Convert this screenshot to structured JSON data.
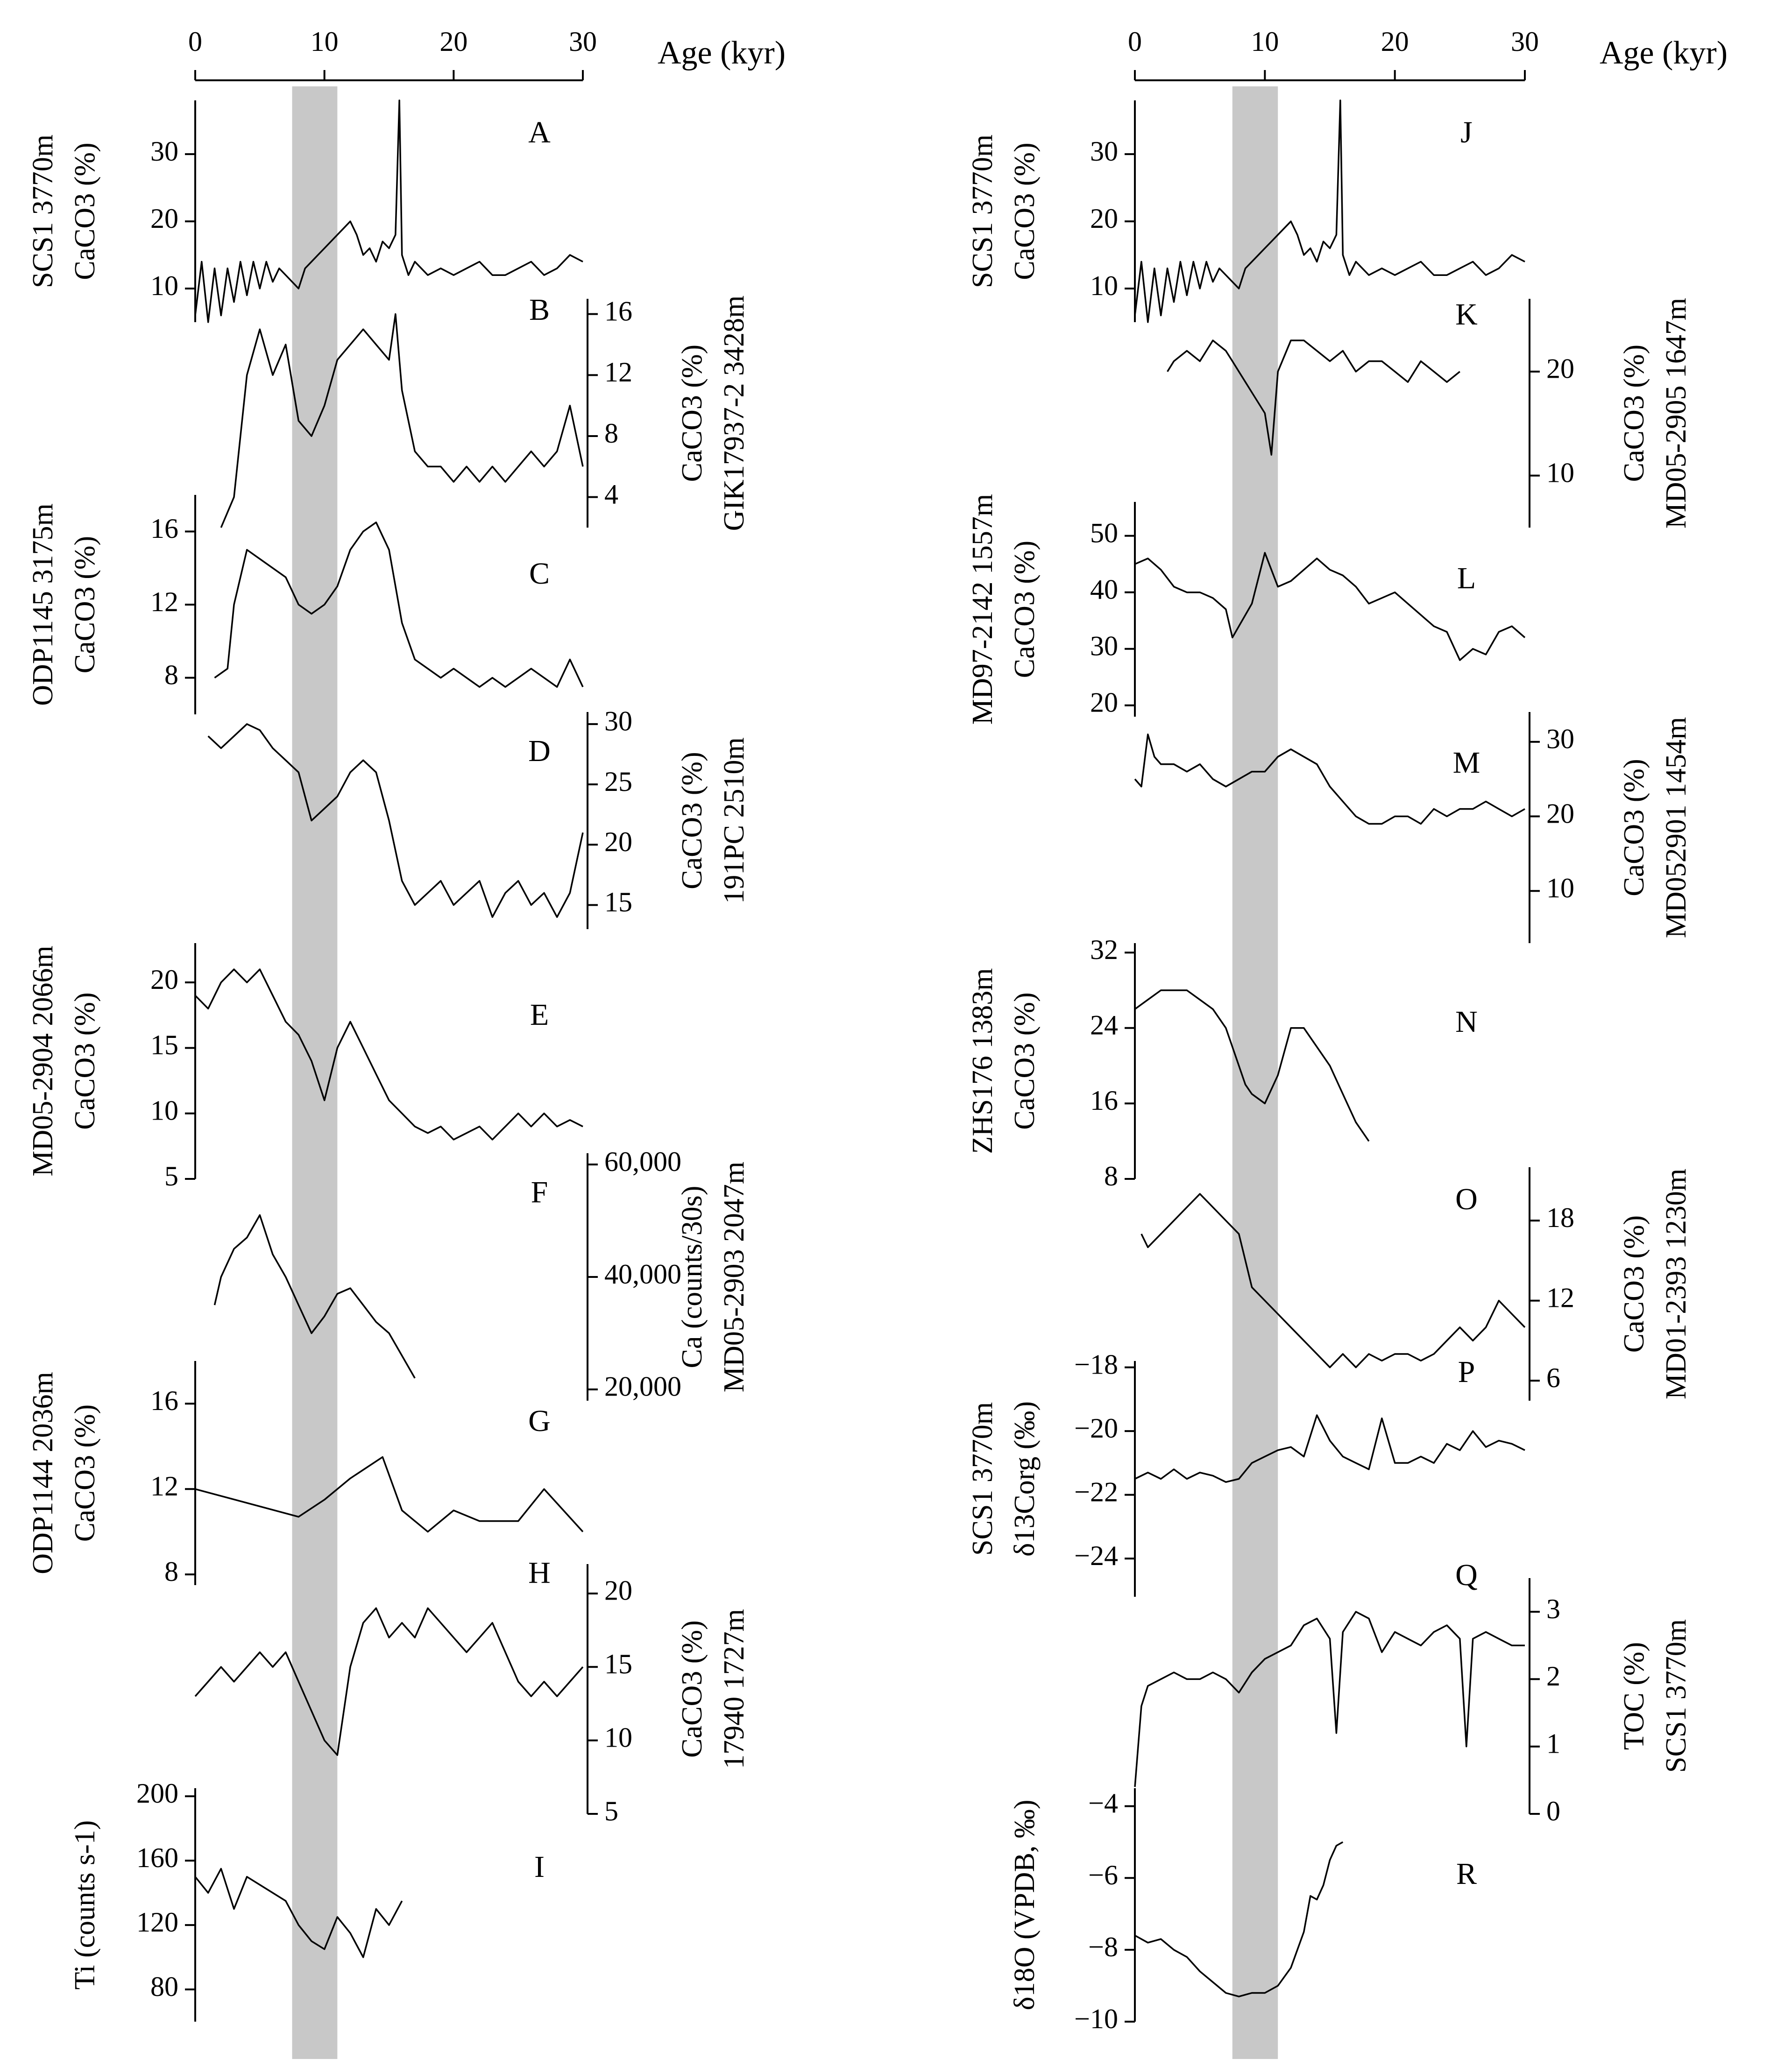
{
  "age_axis": {
    "label": "Age (kyr)",
    "ticks": [
      0,
      10,
      20,
      30
    ],
    "range": [
      0,
      30
    ]
  },
  "highlight_band_kyr": [
    7.5,
    11.0
  ],
  "chart_data": [
    {
      "type": "line",
      "letter": "A",
      "column": "left",
      "site": "SCS1 3770m",
      "ylabel": "CaCO3 (%)",
      "ylabel_sub": "3",
      "yticks": [
        10,
        20,
        30
      ],
      "ylim": [
        5,
        38
      ],
      "axis_side": "left",
      "x": [
        0,
        0.5,
        1,
        1.5,
        2,
        2.5,
        3,
        3.5,
        4,
        4.5,
        5,
        5.5,
        6,
        6.5,
        7,
        7.5,
        8,
        8.5,
        9,
        9.5,
        10,
        10.5,
        11,
        11.5,
        12,
        12.5,
        13,
        13.5,
        14,
        14.5,
        15,
        15.5,
        15.8,
        16,
        16.5,
        17,
        18,
        19,
        20,
        21,
        22,
        23,
        24,
        25,
        26,
        27,
        28,
        29,
        30
      ],
      "y": [
        6,
        14,
        5,
        13,
        6,
        13,
        8,
        14,
        9,
        14,
        10,
        14,
        11,
        13,
        12,
        11,
        10,
        13,
        14,
        15,
        16,
        17,
        18,
        19,
        20,
        18,
        15,
        16,
        14,
        17,
        16,
        18,
        38,
        15,
        12,
        14,
        12,
        13,
        12,
        13,
        14,
        12,
        12,
        13,
        14,
        12,
        13,
        15,
        14
      ]
    },
    {
      "type": "line",
      "letter": "B",
      "column": "left",
      "site": "GIK17937-2 3428m",
      "ylabel": "CaCO3 (%)",
      "ylabel_sub": "3",
      "yticks": [
        4,
        8,
        12,
        16
      ],
      "ylim": [
        2,
        17
      ],
      "axis_side": "right",
      "x": [
        2,
        3,
        4,
        5,
        6,
        7,
        8,
        9,
        10,
        11,
        12,
        13,
        14,
        15,
        15.5,
        16,
        17,
        18,
        19,
        20,
        21,
        22,
        23,
        24,
        25,
        26,
        27,
        28,
        29,
        30
      ],
      "y": [
        2,
        4,
        12,
        15,
        12,
        14,
        9,
        8,
        10,
        13,
        14,
        15,
        14,
        13,
        16,
        11,
        7,
        6,
        6,
        5,
        6,
        5,
        6,
        5,
        6,
        7,
        6,
        7,
        10,
        6
      ]
    },
    {
      "type": "line",
      "letter": "C",
      "column": "left",
      "site": "ODP1145 3175m",
      "ylabel": "CaCO3 (%)",
      "ylabel_sub": "3",
      "yticks": [
        8,
        12,
        16
      ],
      "ylim": [
        6,
        18
      ],
      "axis_side": "left",
      "x": [
        1.5,
        2.5,
        3,
        4,
        5,
        6,
        7,
        8,
        9,
        10,
        11,
        12,
        13,
        14,
        15,
        16,
        17,
        18,
        19,
        20,
        21,
        22,
        23,
        24,
        25,
        26,
        27,
        28,
        29,
        30
      ],
      "y": [
        8,
        8.5,
        12,
        15,
        14.5,
        14,
        13.5,
        12,
        11.5,
        12,
        13,
        15,
        16,
        16.5,
        15,
        11,
        9,
        8.5,
        8,
        8.5,
        8,
        7.5,
        8,
        7.5,
        8,
        8.5,
        8,
        7.5,
        9,
        7.5
      ]
    },
    {
      "type": "line",
      "letter": "D",
      "column": "left",
      "site": "191PC 2510m",
      "ylabel": "CaCO3 (%)",
      "ylabel_sub": "3",
      "yticks": [
        15,
        20,
        25,
        30
      ],
      "ylim": [
        13,
        31
      ],
      "axis_side": "right",
      "x": [
        1,
        2,
        3,
        4,
        5,
        6,
        7,
        8,
        9,
        10,
        11,
        12,
        13,
        14,
        15,
        16,
        17,
        18,
        19,
        20,
        21,
        22,
        23,
        24,
        25,
        26,
        27,
        28,
        29,
        30
      ],
      "y": [
        29,
        28,
        29,
        30,
        29.5,
        28,
        27,
        26,
        22,
        23,
        24,
        26,
        27,
        26,
        22,
        17,
        15,
        16,
        17,
        15,
        16,
        17,
        14,
        16,
        17,
        15,
        16,
        14,
        16,
        21
      ]
    },
    {
      "type": "line",
      "letter": "E",
      "column": "left",
      "site": "MD05-2904 2066m",
      "ylabel": "CaCO3 (%)",
      "ylabel_sub": "3",
      "yticks": [
        5,
        10,
        15,
        20
      ],
      "ylim": [
        5,
        23
      ],
      "axis_side": "left",
      "x": [
        0,
        1,
        2,
        3,
        4,
        5,
        6,
        7,
        8,
        9,
        10,
        11,
        12,
        13,
        14,
        15,
        16,
        17,
        18,
        19,
        20,
        21,
        22,
        23,
        24,
        25,
        26,
        27,
        28,
        29,
        30
      ],
      "y": [
        19,
        18,
        20,
        21,
        20,
        21,
        19,
        17,
        16,
        14,
        11,
        15,
        17,
        15,
        13,
        11,
        10,
        9,
        8.5,
        9,
        8,
        8.5,
        9,
        8,
        9,
        10,
        9,
        10,
        9,
        9.5,
        9
      ]
    },
    {
      "type": "line",
      "letter": "F",
      "column": "left",
      "site": "MD05-2903 2047m",
      "ylabel": "Ca (counts/30s)",
      "yticks": [
        20000,
        40000,
        60000
      ],
      "tick_labels": [
        "20,000",
        "40,000",
        "60,000"
      ],
      "ylim": [
        18000,
        62000
      ],
      "axis_side": "right",
      "x": [
        1.5,
        2,
        3,
        4,
        5,
        6,
        7,
        8,
        9,
        10,
        11,
        12,
        13,
        14,
        15,
        16,
        17
      ],
      "y": [
        35000,
        40000,
        45000,
        47000,
        51000,
        44000,
        40000,
        35000,
        30000,
        33000,
        37000,
        38000,
        35000,
        32000,
        30000,
        26000,
        22000
      ]
    },
    {
      "type": "line",
      "letter": "G",
      "column": "left",
      "site": "ODP1144 2036m",
      "ylabel": "CaCO3 (%)",
      "ylabel_sub": "3",
      "yticks": [
        8,
        12,
        16
      ],
      "ylim": [
        7.5,
        18
      ],
      "axis_side": "left",
      "x": [
        0,
        8,
        10,
        12,
        14.5,
        16,
        18,
        20,
        22,
        24,
        25,
        27,
        30
      ],
      "y": [
        12,
        10.7,
        11.5,
        12.5,
        13.5,
        11,
        10,
        11,
        10.5,
        10.5,
        10.5,
        12,
        10
      ]
    },
    {
      "type": "line",
      "letter": "H",
      "column": "left",
      "site": "17940 1727m",
      "ylabel": "CaCO3 (%)",
      "ylabel_sub": "3",
      "yticks": [
        5,
        10,
        15,
        20
      ],
      "ylim": [
        5,
        22
      ],
      "axis_side": "right",
      "x": [
        0,
        1,
        2,
        3,
        4,
        5,
        6,
        7,
        8,
        9,
        10,
        11,
        12,
        13,
        14,
        15,
        16,
        17,
        18,
        19,
        20,
        21,
        22,
        23,
        24,
        25,
        26,
        27,
        28,
        29,
        30
      ],
      "y": [
        13,
        14,
        15,
        14,
        15,
        16,
        15,
        16,
        14,
        12,
        10,
        9,
        15,
        18,
        19,
        17,
        18,
        17,
        19,
        18,
        17,
        16,
        17,
        18,
        16,
        14,
        13,
        14,
        13,
        14,
        15
      ]
    },
    {
      "type": "line",
      "letter": "I",
      "column": "left",
      "site": "",
      "ylabel": "Ti (counts s-1)",
      "ylabel_sup": "-1",
      "yticks": [
        80,
        120,
        160,
        200
      ],
      "ylim": [
        60,
        205
      ],
      "axis_side": "left",
      "x": [
        0,
        1,
        2,
        3,
        4,
        5,
        6,
        7,
        8,
        9,
        10,
        11,
        12,
        13,
        14,
        15,
        16
      ],
      "y": [
        150,
        140,
        155,
        130,
        150,
        145,
        140,
        135,
        120,
        110,
        105,
        125,
        115,
        100,
        130,
        120,
        135
      ]
    },
    {
      "type": "line",
      "letter": "J",
      "column": "right",
      "site": "SCS1 3770m",
      "ylabel": "CaCO3 (%)",
      "ylabel_sub": "3",
      "yticks": [
        10,
        20,
        30
      ],
      "ylim": [
        5,
        38
      ],
      "axis_side": "left",
      "x": [
        0,
        0.5,
        1,
        1.5,
        2,
        2.5,
        3,
        3.5,
        4,
        4.5,
        5,
        5.5,
        6,
        6.5,
        7,
        7.5,
        8,
        8.5,
        9,
        9.5,
        10,
        10.5,
        11,
        11.5,
        12,
        12.5,
        13,
        13.5,
        14,
        14.5,
        15,
        15.5,
        15.8,
        16,
        16.5,
        17,
        18,
        19,
        20,
        21,
        22,
        23,
        24,
        25,
        26,
        27,
        28,
        29,
        30
      ],
      "y": [
        6,
        14,
        5,
        13,
        6,
        13,
        8,
        14,
        9,
        14,
        10,
        14,
        11,
        13,
        12,
        11,
        10,
        13,
        14,
        15,
        16,
        17,
        18,
        19,
        20,
        18,
        15,
        16,
        14,
        17,
        16,
        18,
        38,
        15,
        12,
        14,
        12,
        13,
        12,
        13,
        14,
        12,
        12,
        13,
        14,
        12,
        13,
        15,
        14
      ]
    },
    {
      "type": "line",
      "letter": "K",
      "column": "right",
      "site": "MD05-2905 1647m",
      "ylabel": "CaCO3 (%)",
      "ylabel_sub": "3",
      "yticks": [
        10,
        20
      ],
      "ylim": [
        5,
        27
      ],
      "axis_side": "right",
      "x": [
        2.5,
        3,
        4,
        5,
        6,
        7,
        7.5,
        8,
        9,
        10,
        10.5,
        11,
        12,
        13,
        14,
        15,
        16,
        17,
        18,
        19,
        20,
        21,
        22,
        23,
        24,
        25
      ],
      "y": [
        20,
        21,
        22,
        21,
        23,
        22,
        21,
        20,
        18,
        16,
        12,
        20,
        23,
        23,
        22,
        21,
        22,
        20,
        21,
        21,
        20,
        19,
        21,
        20,
        19,
        20
      ]
    },
    {
      "type": "line",
      "letter": "L",
      "column": "right",
      "site": "MD97-2142 1557m",
      "ylabel": "CaCO3 (%)",
      "ylabel_sub": "3",
      "yticks": [
        20,
        30,
        40,
        50
      ],
      "ylim": [
        18,
        56
      ],
      "axis_side": "left",
      "x": [
        0,
        1,
        2,
        3,
        4,
        5,
        6,
        7,
        7.5,
        8,
        9,
        10,
        11,
        12,
        13,
        14,
        15,
        16,
        17,
        18,
        19,
        20,
        21,
        22,
        23,
        24,
        25,
        26,
        27,
        28,
        29,
        30
      ],
      "y": [
        45,
        46,
        44,
        41,
        40,
        40,
        39,
        37,
        32,
        34,
        38,
        47,
        41,
        42,
        44,
        46,
        44,
        43,
        41,
        38,
        39,
        40,
        38,
        36,
        34,
        33,
        28,
        30,
        29,
        33,
        34,
        32
      ]
    },
    {
      "type": "line",
      "letter": "M",
      "column": "right",
      "site": "MD052901 1454m",
      "ylabel": "CaCO3 (%)",
      "ylabel_sub": "3",
      "yticks": [
        10,
        20,
        30
      ],
      "ylim": [
        3,
        34
      ],
      "axis_side": "right",
      "x": [
        0,
        0.5,
        1,
        1.5,
        2,
        3,
        4,
        5,
        6,
        7,
        8,
        9,
        10,
        11,
        12,
        13,
        14,
        15,
        16,
        17,
        18,
        19,
        20,
        21,
        22,
        23,
        24,
        25,
        26,
        27,
        28,
        29,
        30
      ],
      "y": [
        25,
        24,
        31,
        28,
        27,
        27,
        26,
        27,
        25,
        24,
        25,
        26,
        26,
        28,
        29,
        28,
        27,
        24,
        22,
        20,
        19,
        19,
        20,
        20,
        19,
        21,
        20,
        21,
        21,
        22,
        21,
        20,
        21
      ]
    },
    {
      "type": "line",
      "letter": "N",
      "column": "right",
      "site": "ZHS176 1383m",
      "ylabel": "CaCO3 (%)",
      "ylabel_sub": "3",
      "yticks": [
        8,
        16,
        24,
        32
      ],
      "ylim": [
        8,
        33
      ],
      "axis_side": "left",
      "x": [
        0,
        1,
        2,
        3,
        4,
        5,
        6,
        7,
        8,
        8.5,
        9,
        10,
        11,
        12,
        13,
        14,
        15,
        16,
        17,
        18
      ],
      "y": [
        26,
        27,
        28,
        28,
        28,
        27,
        26,
        24,
        20,
        18,
        17,
        16,
        19,
        24,
        24,
        22,
        20,
        17,
        14,
        12
      ]
    },
    {
      "type": "line",
      "letter": "O",
      "column": "right",
      "site": "MD01-2393 1230m",
      "ylabel": "CaCO3 (%)",
      "ylabel_sub": "3",
      "yticks": [
        6,
        12,
        18
      ],
      "ylim": [
        4.5,
        22
      ],
      "axis_side": "right",
      "x": [
        0.5,
        1,
        2,
        3,
        4,
        5,
        6,
        7,
        8,
        9,
        10,
        11,
        12,
        13,
        14,
        15,
        16,
        17,
        18,
        19,
        20,
        21,
        22,
        23,
        24,
        25,
        26,
        27,
        28,
        29,
        30
      ],
      "y": [
        17,
        16,
        17,
        18,
        19,
        20,
        19,
        18,
        17,
        13,
        12,
        11,
        10,
        9,
        8,
        7,
        8,
        7,
        8,
        7.5,
        8,
        8,
        7.5,
        8,
        9,
        10,
        9,
        10,
        12,
        11,
        10
      ]
    },
    {
      "type": "line",
      "letter": "P",
      "column": "right",
      "site": "SCS1 3770m",
      "ylabel": "δ13Corg (‰)",
      "ylabel_sup": "13",
      "ylabel_sub": "org",
      "yticks": [
        -24,
        -22,
        -20,
        -18
      ],
      "ylim": [
        -25.2,
        -17.8
      ],
      "axis_side": "left",
      "x": [
        0,
        1,
        2,
        3,
        4,
        5,
        6,
        7,
        8,
        9,
        10,
        11,
        12,
        13,
        14,
        15,
        16,
        17,
        18,
        19,
        20,
        21,
        22,
        23,
        24,
        25,
        26,
        27,
        28,
        29,
        30
      ],
      "y": [
        -21.5,
        -21.3,
        -21.5,
        -21.2,
        -21.5,
        -21.3,
        -21.4,
        -21.6,
        -21.5,
        -21,
        -20.8,
        -20.6,
        -20.5,
        -20.8,
        -19.5,
        -20.3,
        -20.8,
        -21,
        -21.2,
        -19.6,
        -21,
        -21,
        -20.8,
        -21,
        -20.4,
        -20.6,
        -20,
        -20.5,
        -20.3,
        -20.4,
        -20.6
      ]
    },
    {
      "type": "line",
      "letter": "Q",
      "column": "right",
      "site": "SCS1 3770m",
      "ylabel": "TOC (%)",
      "yticks": [
        0,
        1,
        2,
        3
      ],
      "ylim": [
        0,
        3.5
      ],
      "axis_side": "right",
      "x": [
        0,
        0.5,
        1,
        2,
        3,
        4,
        5,
        6,
        7,
        8,
        9,
        10,
        11,
        12,
        13,
        14,
        15,
        15.5,
        16,
        17,
        18,
        19,
        20,
        21,
        22,
        23,
        24,
        25,
        25.5,
        26,
        27,
        28,
        29,
        30
      ],
      "y": [
        0.4,
        1.6,
        1.9,
        2.0,
        2.1,
        2.0,
        2.0,
        2.1,
        2.0,
        1.8,
        2.1,
        2.3,
        2.4,
        2.5,
        2.8,
        2.9,
        2.6,
        1.2,
        2.7,
        3.0,
        2.9,
        2.4,
        2.7,
        2.6,
        2.5,
        2.7,
        2.8,
        2.6,
        1.0,
        2.6,
        2.7,
        2.6,
        2.5,
        2.5
      ]
    },
    {
      "type": "line",
      "letter": "R",
      "column": "right",
      "site": "",
      "ylabel": "δ18O (VPDB, ‰)",
      "ylabel_sup": "18",
      "yticks": [
        -10,
        -8,
        -6,
        -4
      ],
      "ylim": [
        -10,
        -3.5
      ],
      "axis_side": "left",
      "x": [
        0,
        1,
        2,
        3,
        4,
        5,
        6,
        7,
        8,
        9,
        10,
        11,
        12,
        13,
        13.5,
        14,
        14.5,
        15,
        15.5,
        16
      ],
      "y": [
        -7.6,
        -7.8,
        -7.7,
        -8.0,
        -8.2,
        -8.6,
        -8.9,
        -9.2,
        -9.3,
        -9.2,
        -9.2,
        -9.0,
        -8.5,
        -7.5,
        -6.5,
        -6.6,
        -6.2,
        -5.5,
        -5.1,
        -5.0
      ]
    }
  ]
}
